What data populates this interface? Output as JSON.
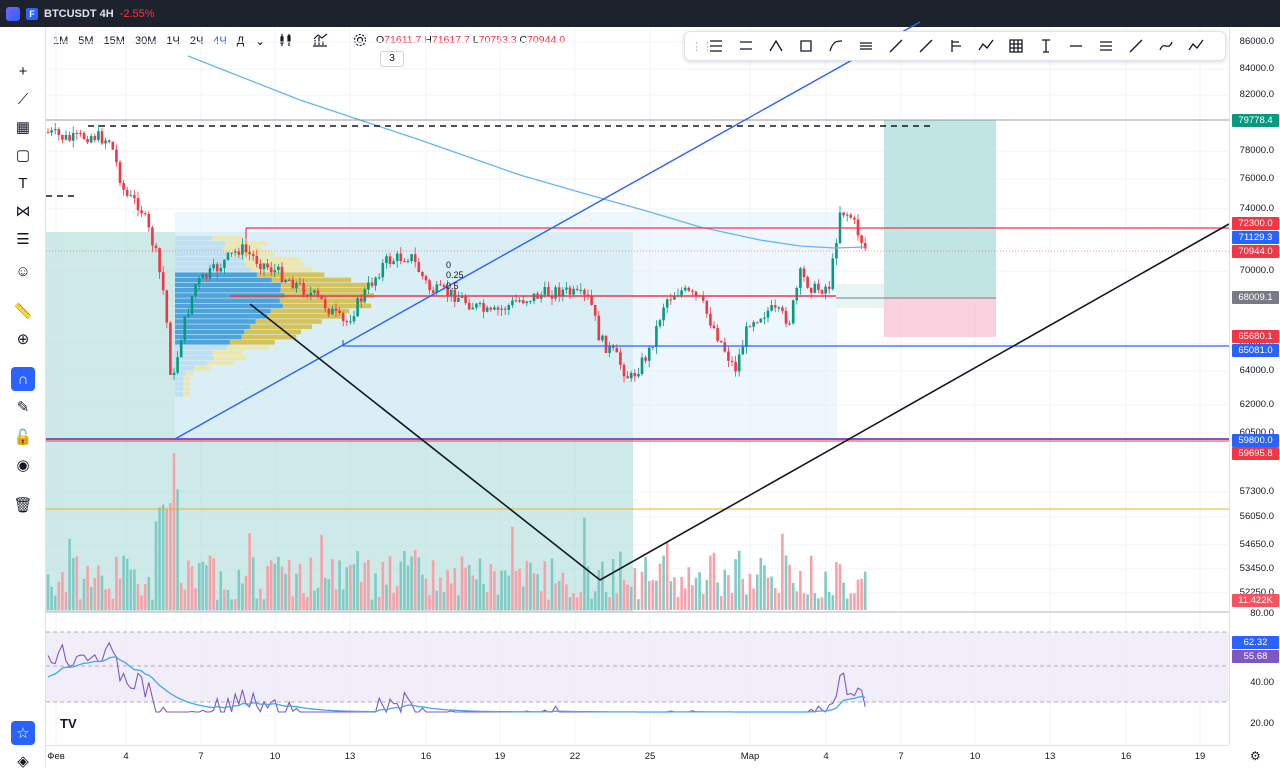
{
  "window": {
    "symbol_title": "BTCUSDT 4H",
    "change": "-2.55%"
  },
  "toolbar": {
    "timeframes": [
      "1M",
      "5M",
      "15M",
      "30M",
      "1Ч",
      "2Ч",
      "4Ч",
      "Д"
    ],
    "selected_timeframe": "4Ч",
    "ohlc": {
      "o_label": "O",
      "o": "71611.7",
      "h_label": "H",
      "h": "71617.7",
      "l_label": "L",
      "l": "70753.3",
      "c_label": "C",
      "c": "70944.0"
    },
    "indicator_count": "3"
  },
  "left_tools": [
    "crosshair-icon",
    "trendline-icon",
    "grid-icon",
    "rectangle-icon",
    "text-icon",
    "pattern-icon",
    "fib-icon",
    "emoji-icon",
    "ruler-icon",
    "zoom-in-icon",
    "magnet-icon",
    "lock-draw-icon",
    "lock-icon",
    "eye-icon",
    "trash-icon",
    "star-icon",
    "layers-icon"
  ],
  "drawing_tools": [
    "fib-retracement-icon",
    "fib-channel-icon",
    "brush-icon",
    "rectangle-icon",
    "path-icon",
    "parallel-lines-icon",
    "arrow-icon",
    "ray-icon",
    "pitchfork-icon",
    "zigzag-icon",
    "grid-icon",
    "text-icon",
    "horizontal-line-icon",
    "lines-icon",
    "trend-icon",
    "curve-icon",
    "pattern-icon"
  ],
  "price_axis": {
    "labels": [
      "86000.0",
      "84000.0",
      "82000.0",
      "78000.0",
      "76000.0",
      "74000.0",
      "70000.0",
      "66000.0",
      "64000.0",
      "62000.0",
      "60500.0",
      "57300.0",
      "56050.0",
      "54650.0",
      "53450.0",
      "52250.0"
    ],
    "badges": [
      {
        "text": "79778.4",
        "color": "#089981"
      },
      {
        "text": "72300.0",
        "color": "#f23645"
      },
      {
        "text": "71129.3",
        "color": "#2962ff"
      },
      {
        "text": "70944.0",
        "color": "#f23645"
      },
      {
        "text": "68009.1",
        "color": "#787b86"
      },
      {
        "text": "65680.1",
        "color": "#f23645"
      },
      {
        "text": "65081.0",
        "color": "#2962ff"
      },
      {
        "text": "59800.0",
        "color": "#2962ff"
      },
      {
        "text": "59695.8",
        "color": "#f23645"
      },
      {
        "text": "11.422K",
        "color": "#f7525f"
      }
    ]
  },
  "rsi_axis": {
    "labels": [
      "80.00",
      "40.00",
      "20.00"
    ],
    "badges": [
      {
        "text": "62.32",
        "color": "#2962ff"
      },
      {
        "text": "55.68",
        "color": "#7e57c2"
      }
    ]
  },
  "fib_labels": [
    "0",
    "0.25",
    "0.5"
  ],
  "time_axis": [
    "Фев",
    "4",
    "7",
    "10",
    "13",
    "16",
    "19",
    "22",
    "25",
    "Мар",
    "4",
    "7",
    "10",
    "13",
    "16",
    "19"
  ]
}
